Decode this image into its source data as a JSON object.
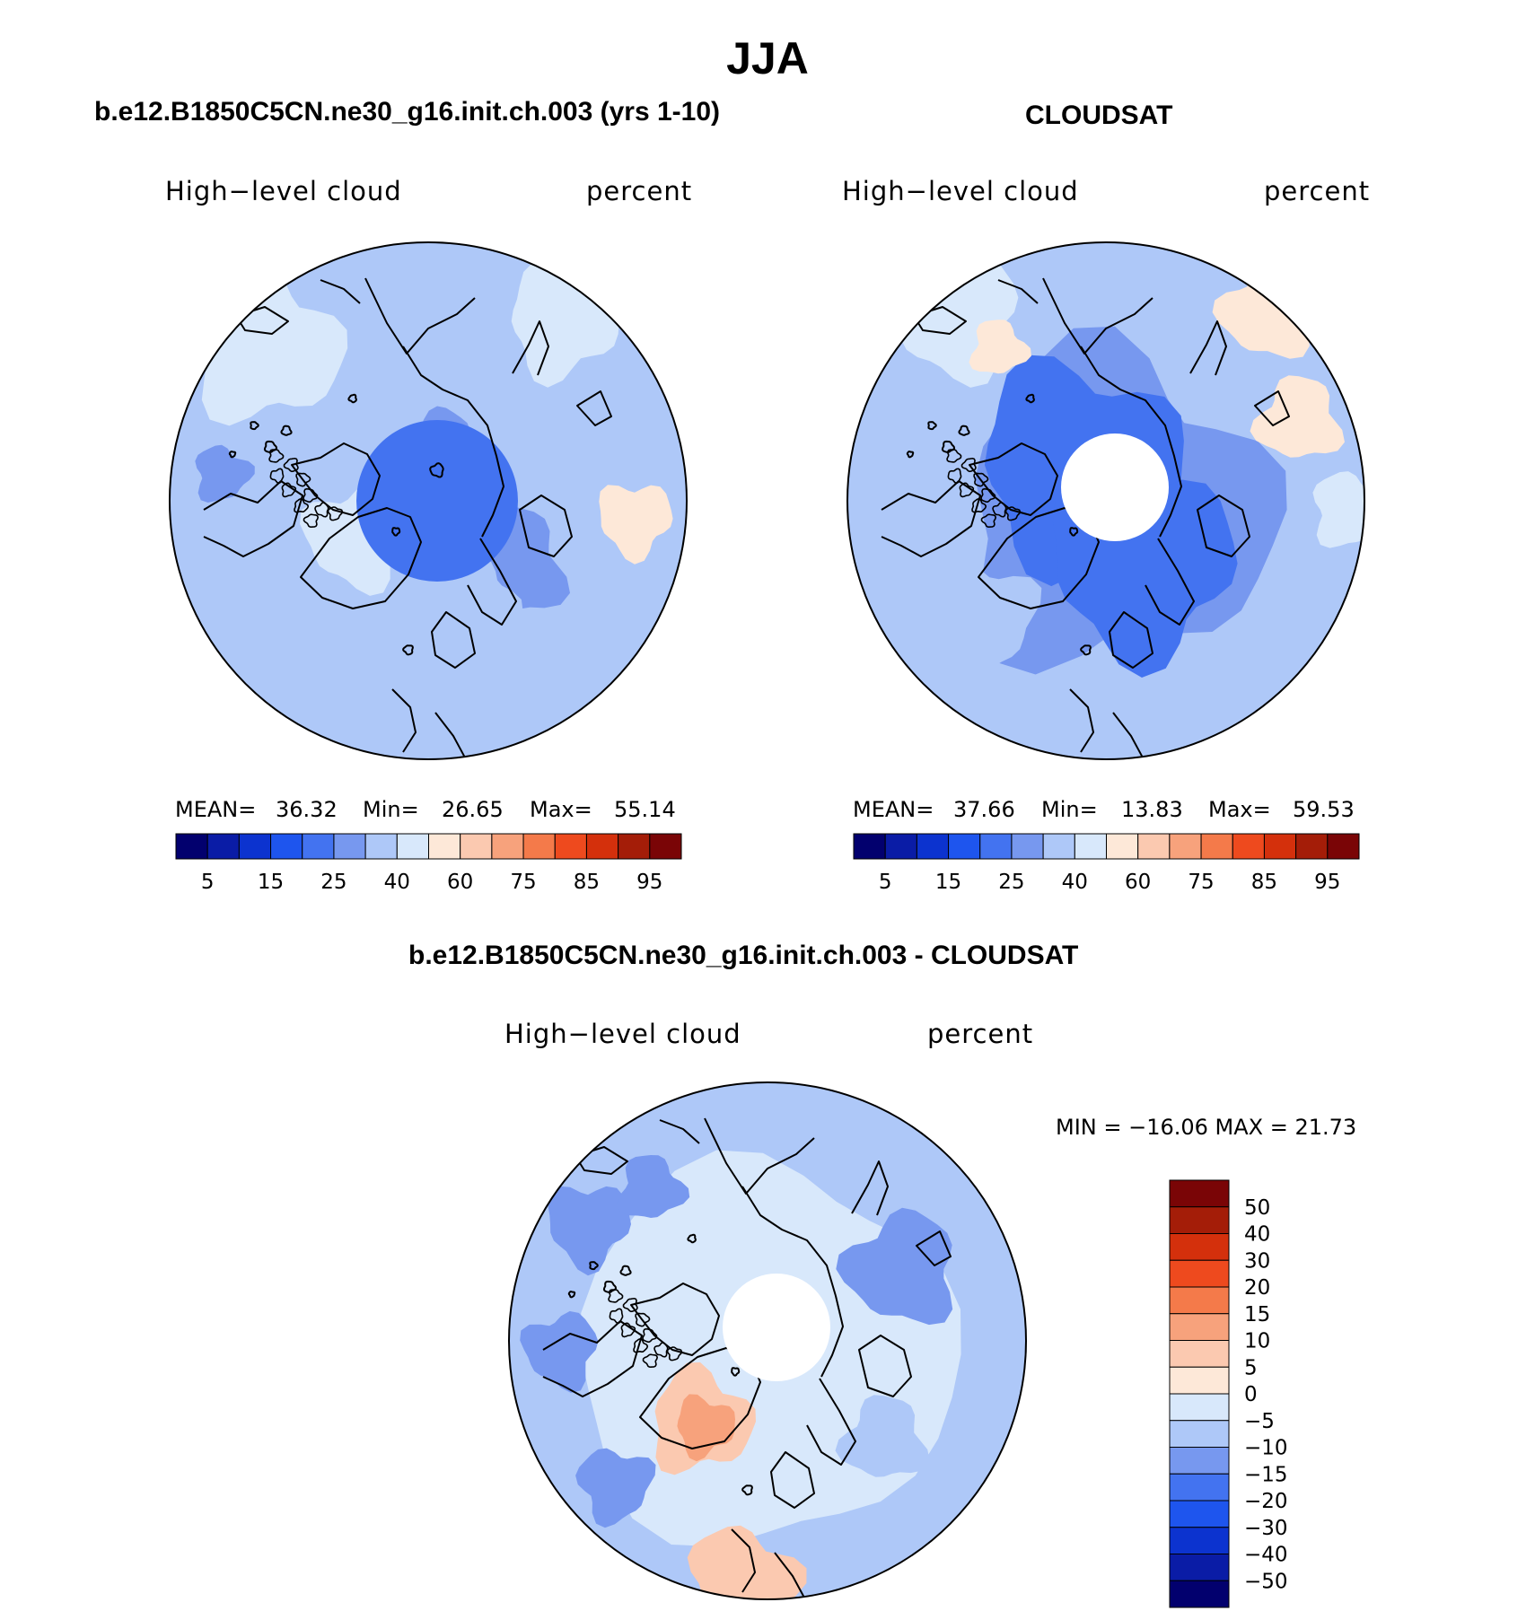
{
  "figure": {
    "title": "JJA"
  },
  "chart_data": [
    {
      "type": "heatmap",
      "projection": "north polar stereographic",
      "title": "b.e12.B1850C5CN.ne30_g16.init.ch.003 (yrs 1-10)",
      "left_label": "High−level cloud",
      "right_label": "percent",
      "stats": {
        "mean_label": "MEAN=",
        "mean": "36.32",
        "min_label": "Min=",
        "min": "26.65",
        "max_label": "Max=",
        "max": "55.14"
      },
      "colorbar": {
        "orientation": "horizontal",
        "tick_labels": [
          "5",
          "15",
          "25",
          "40",
          "60",
          "75",
          "85",
          "95"
        ],
        "colors": [
          "#02006e",
          "#0a1ca6",
          "#0c33cf",
          "#1e55ee",
          "#4373f0",
          "#7798ef",
          "#aec8f8",
          "#d8e8fb",
          "#fde8d8",
          "#fbc9b0",
          "#f7a27c",
          "#f47a4a",
          "#ee4a1e",
          "#d4300c",
          "#a41d08",
          "#7a0506"
        ]
      },
      "polar_cap_masked": false
    },
    {
      "type": "heatmap",
      "projection": "north polar stereographic",
      "title": "CLOUDSAT",
      "left_label": "High−level cloud",
      "right_label": "percent",
      "stats": {
        "mean_label": "MEAN=",
        "mean": "37.66",
        "min_label": "Min=",
        "min": "13.83",
        "max_label": "Max=",
        "max": "59.53"
      },
      "colorbar": {
        "orientation": "horizontal",
        "tick_labels": [
          "5",
          "15",
          "25",
          "40",
          "60",
          "75",
          "85",
          "95"
        ],
        "colors": [
          "#02006e",
          "#0a1ca6",
          "#0c33cf",
          "#1e55ee",
          "#4373f0",
          "#7798ef",
          "#aec8f8",
          "#d8e8fb",
          "#fde8d8",
          "#fbc9b0",
          "#f7a27c",
          "#f47a4a",
          "#ee4a1e",
          "#d4300c",
          "#a41d08",
          "#7a0506"
        ]
      },
      "polar_cap_masked": true
    },
    {
      "type": "heatmap",
      "projection": "north polar stereographic",
      "title": "b.e12.B1850C5CN.ne30_g16.init.ch.003 - CLOUDSAT",
      "left_label": "High−level cloud",
      "right_label": "percent",
      "stats_text": "MIN = −16.06 MAX =  21.73",
      "colorbar": {
        "orientation": "vertical",
        "tick_labels": [
          "50",
          "40",
          "30",
          "20",
          "15",
          "10",
          "5",
          "0",
          "−5",
          "−10",
          "−15",
          "−20",
          "−30",
          "−40",
          "−50"
        ],
        "colors": [
          "#7a0506",
          "#a41d08",
          "#d4300c",
          "#ee4a1e",
          "#f47a4a",
          "#f7a27c",
          "#fbc9b0",
          "#fde8d8",
          "#d8e8fb",
          "#aec8f8",
          "#7798ef",
          "#4373f0",
          "#1e55ee",
          "#0c33cf",
          "#0a1ca6",
          "#02006e"
        ]
      },
      "polar_cap_masked": true
    }
  ]
}
